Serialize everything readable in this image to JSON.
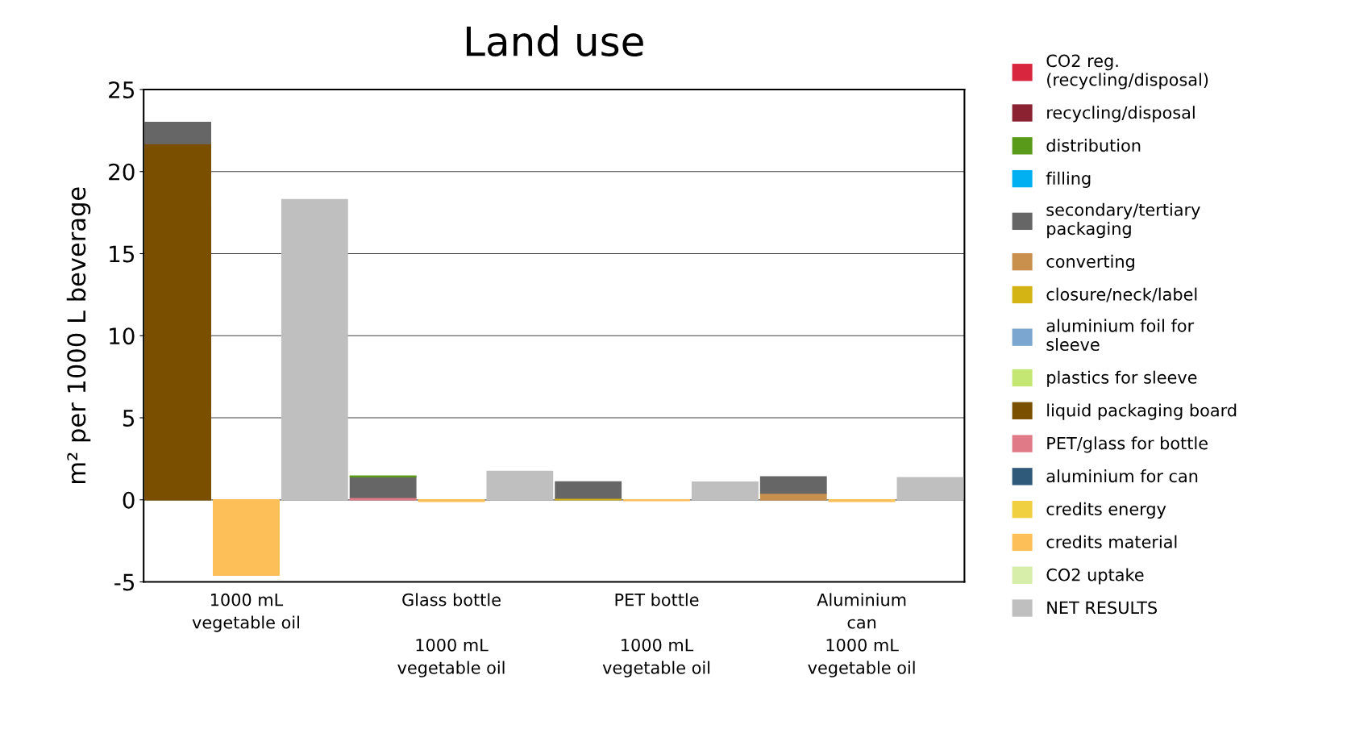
{
  "chart_data": {
    "type": "bar",
    "stacked": true,
    "title": "Land use",
    "ylabel": "m² per 1000 L beverage",
    "categories": [
      null,
      "1000 mL\nvegetable oil",
      null,
      null,
      "Glass bottle\n\n1000 mL\nvegetable oil",
      null,
      null,
      "PET bottle\n\n1000 mL\nvegetable oil",
      null,
      null,
      "Aluminium\ncan\n1000 mL\nvegetable oil",
      null
    ],
    "ylim": [
      -5,
      25
    ],
    "yticks": [
      {
        "value": -5,
        "label": "-5"
      },
      0,
      5,
      10,
      15,
      20,
      25
    ],
    "grid": "y",
    "legend": "right",
    "series": [
      {
        "name": "NET RESULTS",
        "color": "#bfbfbf",
        "values": [
          null,
          null,
          18.3,
          null,
          null,
          1.73,
          null,
          null,
          1.08,
          null,
          null,
          1.35
        ]
      },
      {
        "name": "CO2 uptake",
        "color": "#d6eeaa",
        "values": [
          null,
          null,
          null,
          null,
          null,
          null,
          null,
          null,
          null,
          null,
          null,
          null
        ]
      },
      {
        "name": "credits material",
        "color": "#fdbf58",
        "values": [
          null,
          -4.6,
          null,
          null,
          -0.1,
          null,
          null,
          -0.05,
          null,
          null,
          -0.1,
          null
        ]
      },
      {
        "name": "credits energy",
        "color": "#f0d040",
        "values": [
          null,
          null,
          null,
          null,
          null,
          null,
          null,
          null,
          null,
          null,
          null,
          null
        ]
      },
      {
        "name": "aluminium for can",
        "color": "#2f5a7a",
        "values": [
          null,
          null,
          null,
          null,
          null,
          null,
          null,
          null,
          null,
          null,
          null,
          null
        ]
      },
      {
        "name": "PET/glass for bottle",
        "color": "#e07a86",
        "values": [
          null,
          null,
          null,
          0.15,
          null,
          null,
          null,
          null,
          null,
          null,
          null,
          null
        ]
      },
      {
        "name": "liquid packaging board",
        "color": "#7a4f00",
        "values": [
          21.7,
          null,
          null,
          null,
          null,
          null,
          null,
          null,
          null,
          null,
          null,
          null
        ]
      },
      {
        "name": "plastics for sleeve",
        "color": "#c4e673",
        "values": [
          null,
          null,
          null,
          null,
          null,
          null,
          null,
          null,
          null,
          null,
          null,
          null
        ]
      },
      {
        "name": "aluminium foil for\nsleeve",
        "color": "#7aa6cf",
        "values": [
          null,
          null,
          null,
          null,
          null,
          null,
          null,
          null,
          null,
          null,
          null,
          null
        ]
      },
      {
        "name": "closure/neck/label",
        "color": "#d4b414",
        "values": [
          null,
          null,
          null,
          null,
          null,
          null,
          0.1,
          null,
          null,
          null,
          null,
          null
        ]
      },
      {
        "name": "converting",
        "color": "#c8904c",
        "values": [
          null,
          null,
          null,
          null,
          null,
          null,
          null,
          null,
          null,
          0.4,
          null,
          null
        ]
      },
      {
        "name": "secondary/tertiary\npackaging",
        "color": "#666666",
        "values": [
          1.3,
          null,
          null,
          1.25,
          null,
          null,
          1.0,
          null,
          null,
          1.0,
          null,
          null
        ]
      },
      {
        "name": "filling",
        "color": "#00b0f0",
        "values": [
          null,
          null,
          null,
          null,
          null,
          null,
          null,
          null,
          null,
          null,
          null,
          null
        ]
      },
      {
        "name": "distribution",
        "color": "#5a9a1a",
        "values": [
          null,
          null,
          null,
          0.05,
          null,
          null,
          null,
          null,
          null,
          null,
          null,
          null
        ]
      },
      {
        "name": "recycling/disposal",
        "color": "#8b2232",
        "values": [
          null,
          null,
          null,
          null,
          null,
          null,
          null,
          null,
          null,
          null,
          null,
          null
        ]
      },
      {
        "name": "CO2 reg.\n(recycling/disposal)",
        "color": "#d7263d",
        "values": [
          null,
          null,
          null,
          null,
          null,
          null,
          null,
          null,
          null,
          null,
          null,
          null
        ]
      }
    ]
  }
}
